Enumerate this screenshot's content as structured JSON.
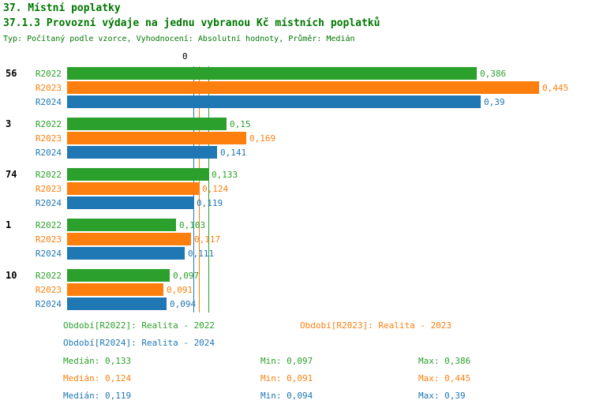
{
  "header": {
    "title": "37. Místní poplatky",
    "subtitle": "37.1.3 Provozní výdaje na jednu vybranou Kč místních poplatků",
    "meta": "Typ: Počítaný podle vzorce, Vyhodnocení: Absolutní hodnoty, Průměr: Medián"
  },
  "colors": {
    "header_text": "#007700",
    "r2022": "#2ca02c",
    "r2023": "#ff7f0e",
    "r2024": "#1f77b4",
    "group_label": "#000000"
  },
  "chart_data": {
    "type": "bar",
    "orientation": "horizontal",
    "axis_zero_label": "0",
    "xlim": [
      0,
      0.47
    ],
    "grid": false,
    "categories": [
      "56",
      "3",
      "74",
      "1",
      "10"
    ],
    "series": [
      {
        "name": "R2022",
        "color": "#2ca02c",
        "values": [
          0.386,
          0.15,
          0.133,
          0.103,
          0.097
        ],
        "value_labels": [
          "0,386",
          "0,15",
          "0,133",
          "0,103",
          "0,097"
        ]
      },
      {
        "name": "R2023",
        "color": "#ff7f0e",
        "values": [
          0.445,
          0.169,
          0.124,
          0.117,
          0.091
        ],
        "value_labels": [
          "0,445",
          "0,169",
          "0,124",
          "0,117",
          "0,091"
        ]
      },
      {
        "name": "R2024",
        "color": "#1f77b4",
        "values": [
          0.39,
          0.141,
          0.119,
          0.111,
          0.094
        ],
        "value_labels": [
          "0,39",
          "0,141",
          "0,119",
          "0,111",
          "0,094"
        ]
      }
    ],
    "median_lines": [
      {
        "value": 0.133,
        "color": "#2ca02c"
      },
      {
        "value": 0.124,
        "color": "#ff7f0e"
      },
      {
        "value": 0.119,
        "color": "#1f77b4"
      }
    ]
  },
  "legend": {
    "items": [
      {
        "label": "Období[R2022]: Realita - 2022",
        "color": "#2ca02c"
      },
      {
        "label": "Období[R2023]: Realita - 2023",
        "color": "#ff7f0e"
      },
      {
        "label": "Období[R2024]: Realita - 2024",
        "color": "#1f77b4"
      }
    ]
  },
  "stats": {
    "rows": [
      {
        "median": "Medián: 0,133",
        "min": "Min: 0,097",
        "max": "Max: 0,386",
        "color": "#2ca02c"
      },
      {
        "median": "Medián: 0,124",
        "min": "Min: 0,091",
        "max": "Max: 0,445",
        "color": "#ff7f0e"
      },
      {
        "median": "Medián: 0,119",
        "min": "Min: 0,094",
        "max": "Max: 0,39",
        "color": "#1f77b4"
      }
    ]
  }
}
